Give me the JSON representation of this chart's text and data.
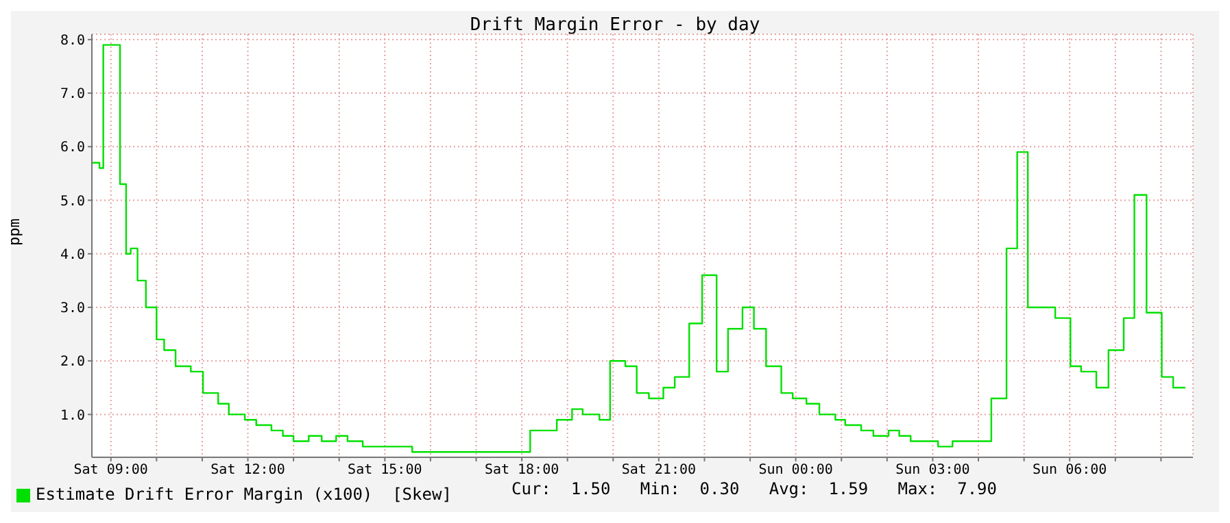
{
  "chart_data": {
    "type": "step",
    "title": "Drift Margin Error - by day",
    "ylabel": "ppm",
    "x": [
      "--01-06T08:35",
      "--01-06T08:40",
      "--01-06T08:45",
      "--01-06T08:50",
      "--01-06T09:12",
      "--01-06T09:20",
      "--01-06T09:26",
      "--01-06T09:35",
      "--01-06T09:46",
      "--01-06T10:00",
      "--01-06T10:10",
      "--01-06T10:25",
      "--01-06T10:45",
      "--01-06T11:01",
      "--01-06T11:21",
      "--01-06T11:35",
      "--01-06T11:56",
      "--01-06T12:11",
      "--01-06T12:31",
      "--01-06T12:46",
      "--01-06T13:00",
      "--01-06T13:20",
      "--01-06T13:37",
      "--01-06T13:56",
      "--01-06T14:11",
      "--01-06T14:31",
      "--01-06T15:36",
      "--01-06T18:11",
      "--01-06T18:46",
      "--01-06T19:06",
      "--01-06T19:20",
      "--01-06T19:42",
      "--01-06T19:56",
      "--01-06T20:16",
      "--01-06T20:31",
      "--01-06T20:47",
      "--01-06T21:06",
      "--01-06T21:21",
      "--01-06T21:40",
      "--01-06T21:57",
      "--01-06T22:16",
      "--01-06T22:31",
      "--01-06T22:50",
      "--01-06T23:05",
      "--01-06T23:21",
      "--01-06T23:41",
      "--01-06T23:56",
      "--01-07T00:14",
      "--01-07T00:31",
      "--01-07T00:52",
      "--01-07T01:05",
      "--01-07T01:26",
      "--01-07T01:42",
      "--01-07T02:02",
      "--01-07T02:16",
      "--01-07T02:31",
      "--01-07T03:07",
      "--01-07T03:26",
      "--01-07T04:17",
      "--01-07T04:37",
      "--01-07T04:51",
      "--01-07T05:05",
      "--01-07T05:41",
      "--01-07T06:01",
      "--01-07T06:15",
      "--01-07T06:35",
      "--01-07T06:51",
      "--01-07T07:11",
      "--01-07T07:25",
      "--01-07T07:41",
      "--01-07T08:01",
      "--01-07T08:16",
      "--01-07T08:32"
    ],
    "series": [
      {
        "name": "Estimate Drift Error Margin (x100)  [Skew]",
        "color": "#00e000",
        "values": [
          5.7,
          5.7,
          5.6,
          7.9,
          5.3,
          4.0,
          4.1,
          3.5,
          3.0,
          2.4,
          2.2,
          1.9,
          1.8,
          1.4,
          1.2,
          1.0,
          0.9,
          0.8,
          0.7,
          0.6,
          0.5,
          0.6,
          0.5,
          0.6,
          0.5,
          0.4,
          0.3,
          0.7,
          0.9,
          1.1,
          1.0,
          0.9,
          2.0,
          1.9,
          1.4,
          1.3,
          1.5,
          1.7,
          2.7,
          3.6,
          1.8,
          2.6,
          3.0,
          2.6,
          1.9,
          1.4,
          1.3,
          1.2,
          1.0,
          0.9,
          0.8,
          0.7,
          0.6,
          0.7,
          0.6,
          0.5,
          0.4,
          0.5,
          1.3,
          4.1,
          5.9,
          3.0,
          2.8,
          1.9,
          1.8,
          1.5,
          2.2,
          2.8,
          5.1,
          2.9,
          1.7,
          1.5,
          1.5
        ]
      }
    ],
    "xlim": [
      "--01-06T08:35",
      "--01-07T08:42"
    ],
    "xticks": [
      {
        "value": "--01-06T09:00",
        "label": "Sat 09:00"
      },
      {
        "value": "--01-06T10:00",
        "label": null
      },
      {
        "value": "--01-06T11:00",
        "label": null
      },
      {
        "value": "--01-06T12:00",
        "label": "Sat 12:00"
      },
      {
        "value": "--01-06T13:00",
        "label": null
      },
      {
        "value": "--01-06T14:00",
        "label": null
      },
      {
        "value": "--01-06T15:00",
        "label": "Sat 15:00"
      },
      {
        "value": "--01-06T16:00",
        "label": null
      },
      {
        "value": "--01-06T17:00",
        "label": null
      },
      {
        "value": "--01-06T18:00",
        "label": "Sat 18:00"
      },
      {
        "value": "--01-06T19:00",
        "label": null
      },
      {
        "value": "--01-06T20:00",
        "label": null
      },
      {
        "value": "--01-06T21:00",
        "label": "Sat 21:00"
      },
      {
        "value": "--01-06T22:00",
        "label": null
      },
      {
        "value": "--01-06T23:00",
        "label": null
      },
      {
        "value": "--01-07T00:00",
        "label": "Sun 00:00"
      },
      {
        "value": "--01-07T01:00",
        "label": null
      },
      {
        "value": "--01-07T02:00",
        "label": null
      },
      {
        "value": "--01-07T03:00",
        "label": "Sun 03:00"
      },
      {
        "value": "--01-07T04:00",
        "label": null
      },
      {
        "value": "--01-07T05:00",
        "label": null
      },
      {
        "value": "--01-07T06:00",
        "label": "Sun 06:00"
      },
      {
        "value": "--01-07T07:00",
        "label": null
      },
      {
        "value": "--01-07T08:00",
        "label": null
      }
    ],
    "ylim": [
      0.2,
      8.1
    ],
    "yticks": [
      {
        "value": 1,
        "label": "1.0"
      },
      {
        "value": 2,
        "label": "2.0"
      },
      {
        "value": 3,
        "label": "3.0"
      },
      {
        "value": 4,
        "label": "4.0"
      },
      {
        "value": 5,
        "label": "5.0"
      },
      {
        "value": 6,
        "label": "6.0"
      },
      {
        "value": 7,
        "label": "7.0"
      },
      {
        "value": 8,
        "label": "8.0"
      }
    ],
    "grid": true,
    "legend": "bottom left",
    "marker": "none",
    "line_style": "solid",
    "annotations": [
      "Cur:  1.50   Min:  0.30   Avg:  1.59   Max:  7.90"
    ]
  }
}
